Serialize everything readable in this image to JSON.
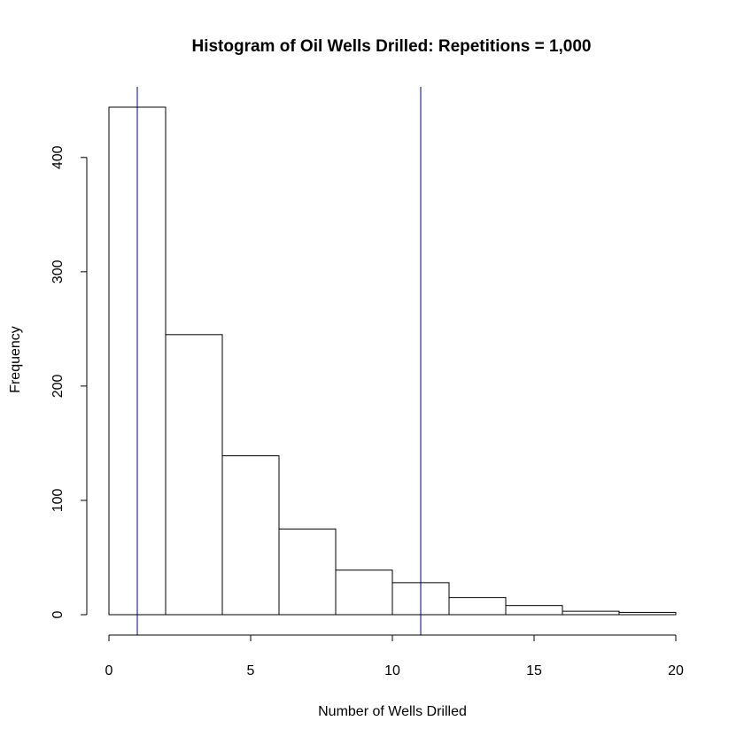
{
  "chart_data": {
    "type": "bar",
    "title": "Histogram of Oil Wells Drilled: Repetitions = 1,000",
    "xlabel": "Number of Wells Drilled",
    "ylabel": "Frequency",
    "bins": [
      {
        "from": 0,
        "to": 2,
        "count": 444
      },
      {
        "from": 2,
        "to": 4,
        "count": 245
      },
      {
        "from": 4,
        "to": 6,
        "count": 139
      },
      {
        "from": 6,
        "to": 8,
        "count": 75
      },
      {
        "from": 8,
        "to": 10,
        "count": 39
      },
      {
        "from": 10,
        "to": 12,
        "count": 28
      },
      {
        "from": 12,
        "to": 14,
        "count": 15
      },
      {
        "from": 14,
        "to": 16,
        "count": 8
      },
      {
        "from": 16,
        "to": 18,
        "count": 3
      },
      {
        "from": 18,
        "to": 20,
        "count": 2
      }
    ],
    "xlim": [
      0,
      20
    ],
    "ylim": [
      0,
      444
    ],
    "x_ticks": [
      0,
      5,
      10,
      15,
      20
    ],
    "y_ticks": [
      0,
      100,
      200,
      300,
      400
    ],
    "reference_lines": [
      {
        "axis": "x",
        "value": 1,
        "color": "#000080"
      },
      {
        "axis": "x",
        "value": 11,
        "color": "#000080"
      }
    ],
    "grid": false,
    "bar_fill": "#ffffff",
    "bar_stroke": "#000000"
  }
}
